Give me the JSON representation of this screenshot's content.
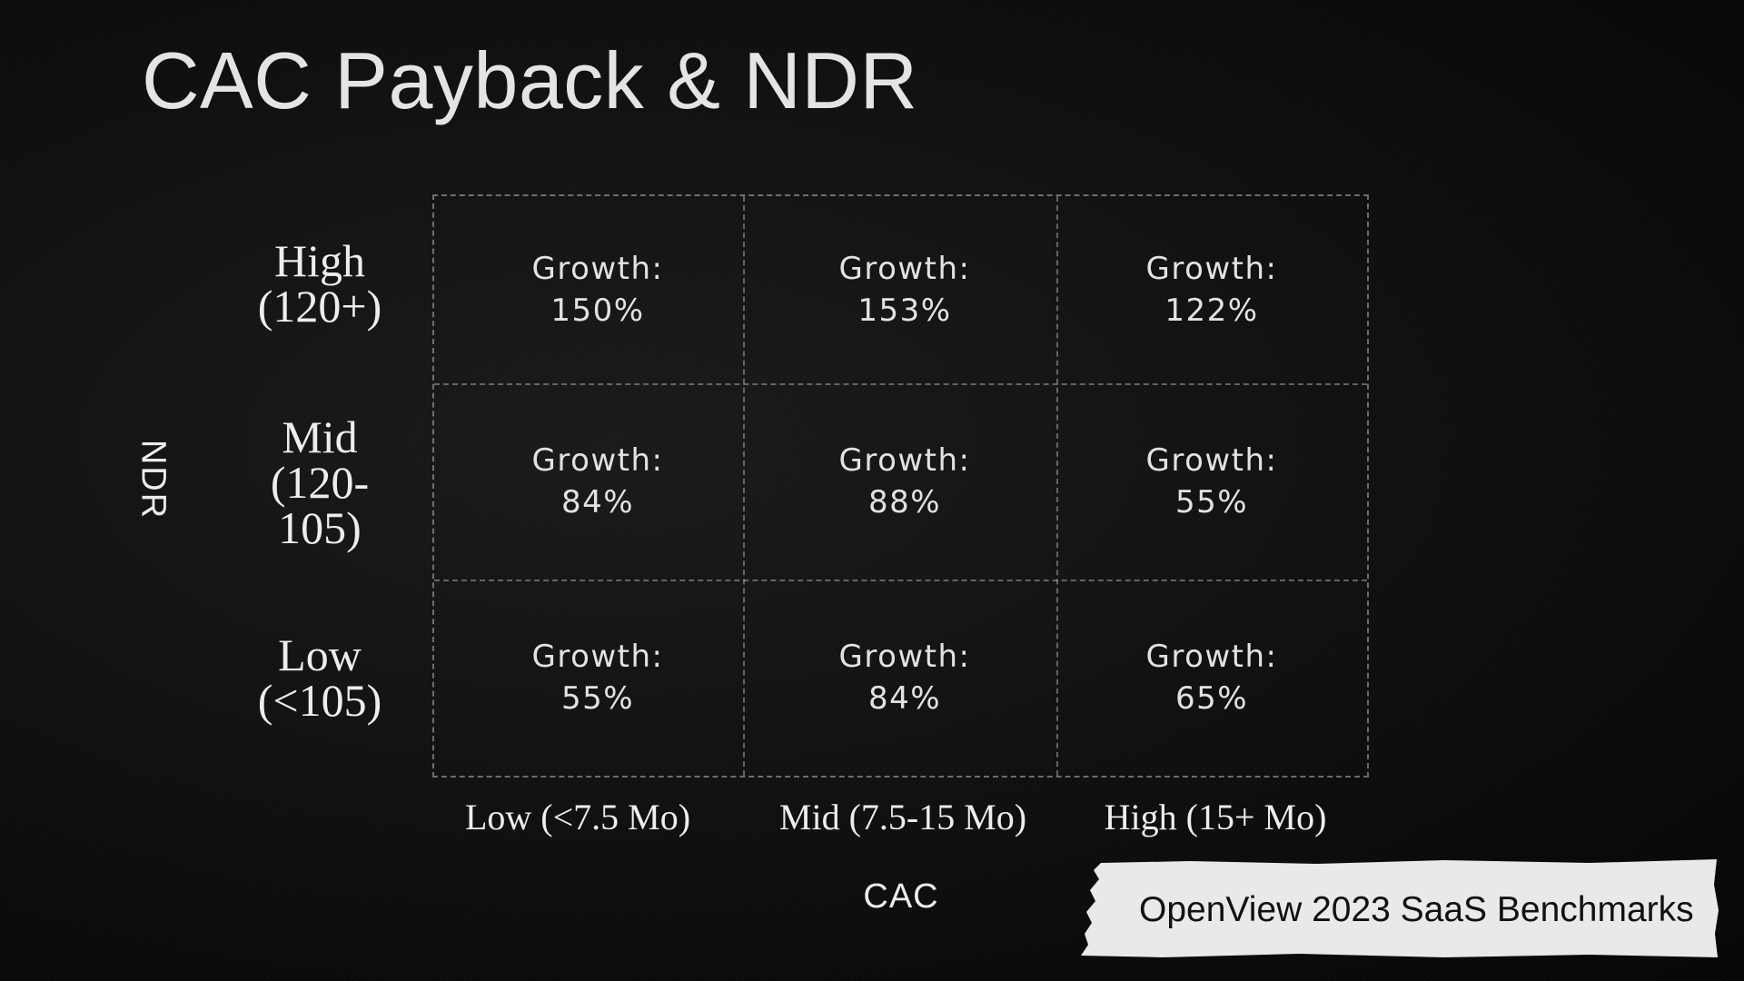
{
  "slide": {
    "title": "CAC Payback & NDR",
    "source_note": "OpenView 2023 SaaS Benchmarks"
  },
  "colors": {
    "background": "#0d0d0d",
    "text": "#e6e6e6",
    "grid_line": "#b0b0b0",
    "tag_paper": "#e9e9e9"
  },
  "chart_data": {
    "type": "heatmap",
    "title": "CAC Payback & NDR",
    "xlabel": "CAC",
    "ylabel": "NDR",
    "x_categories": [
      "Low (<7.5 Mo)",
      "Mid (7.5-15 Mo)",
      "High (15+ Mo)"
    ],
    "y_categories": [
      {
        "lines": [
          "High",
          "(120+)"
        ]
      },
      {
        "lines": [
          "Mid",
          "(120-",
          "105)"
        ]
      },
      {
        "lines": [
          "Low",
          "(<105)"
        ]
      }
    ],
    "cell_label": "Growth:",
    "values": [
      [
        150,
        153,
        122
      ],
      [
        84,
        88,
        55
      ],
      [
        55,
        84,
        65
      ]
    ],
    "value_labels": [
      [
        "150%",
        "153%",
        "122%"
      ],
      [
        "84%",
        "88%",
        "55%"
      ],
      [
        "55%",
        "84%",
        "65%"
      ]
    ],
    "unit": "%",
    "grid": true,
    "legend": "none"
  }
}
